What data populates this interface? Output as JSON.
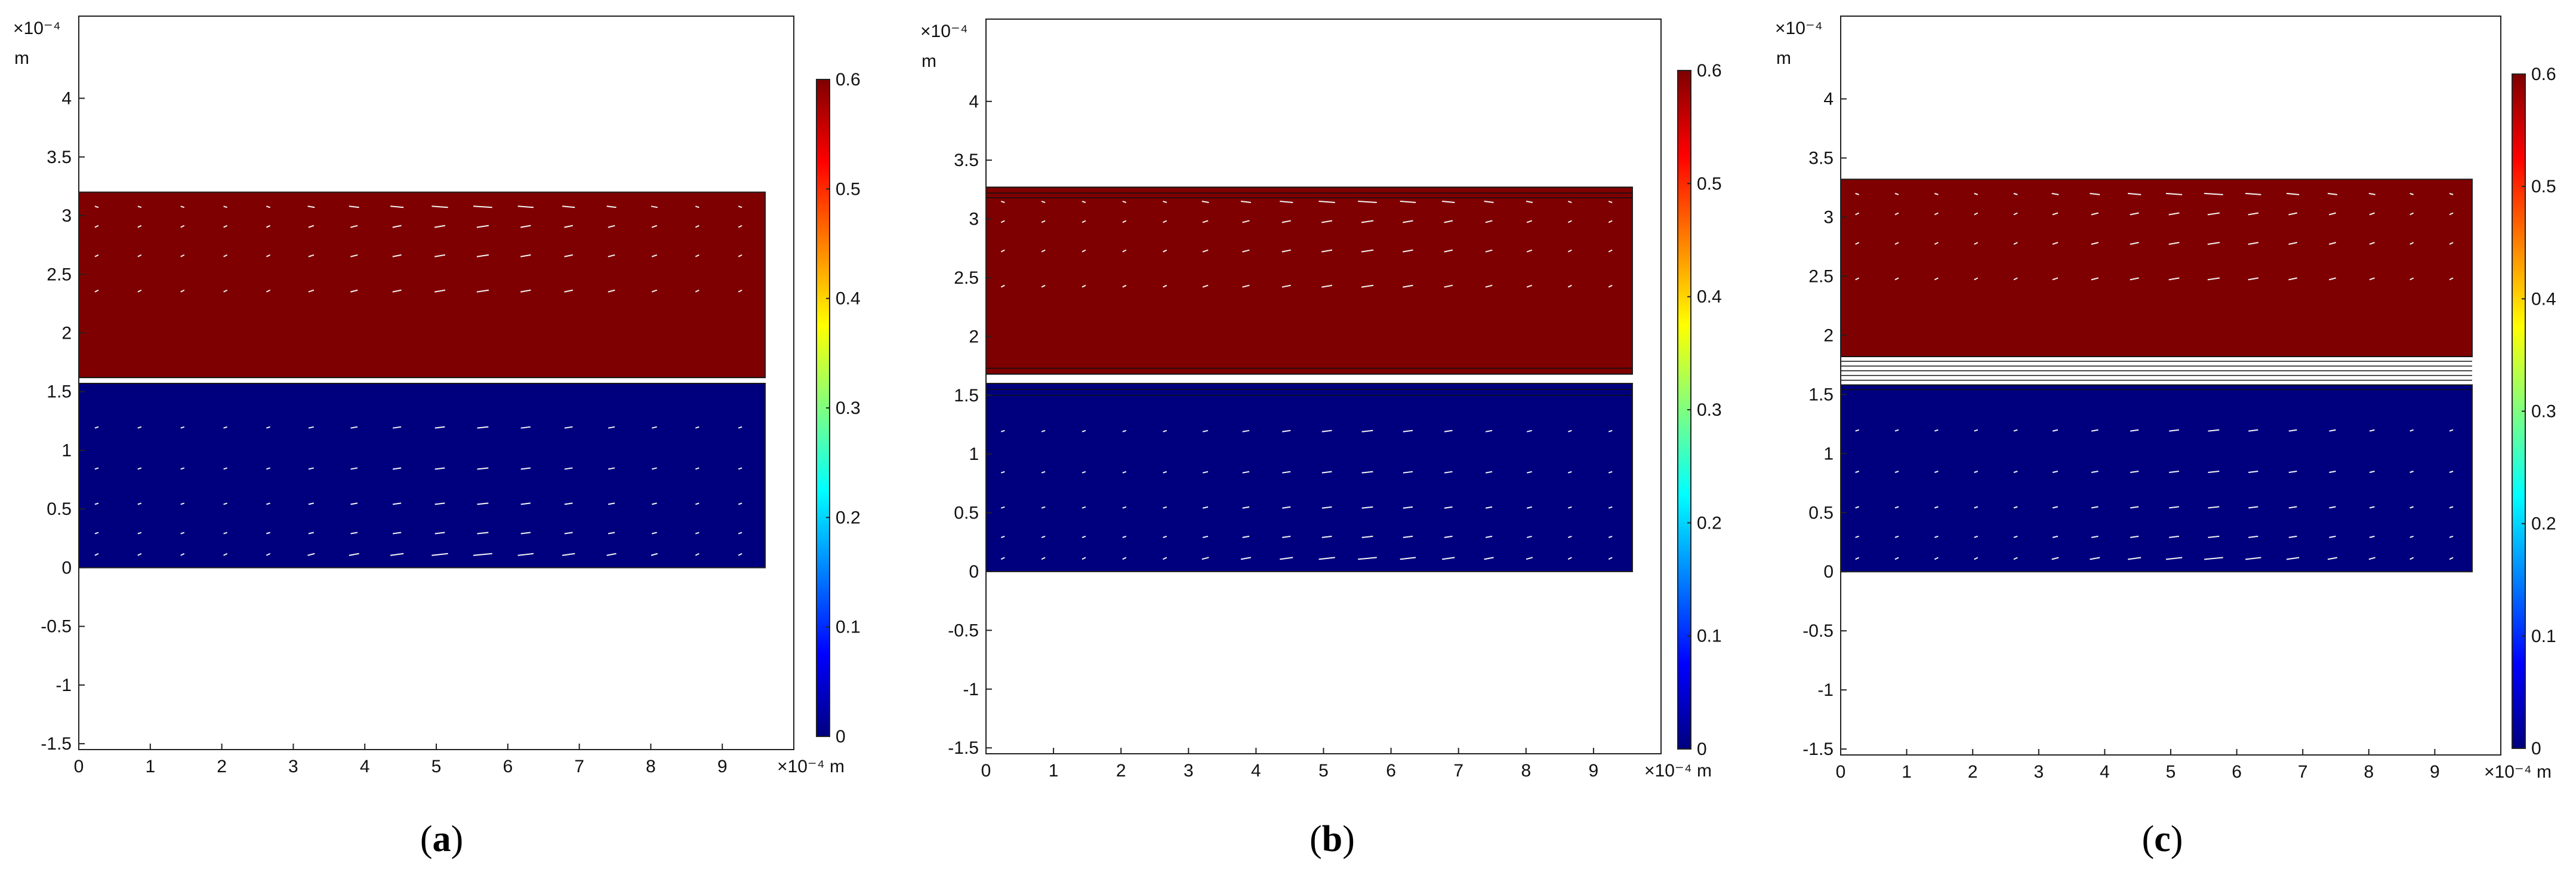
{
  "figure": {
    "panels": [
      {
        "caption_open": "(",
        "caption_letter": "a",
        "caption_close": ")",
        "y_unit_exp": "×10⁻⁴",
        "y_unit": "m",
        "x_unit": "×10⁻⁴ m",
        "x_ticks": [
          "0",
          "1",
          "2",
          "3",
          "4",
          "5",
          "6",
          "7",
          "8",
          "9"
        ],
        "y_ticks": [
          "4",
          "3.5",
          "3",
          "2.5",
          "2",
          "1.5",
          "1",
          "0.5",
          "0",
          "-0.5",
          "-1",
          "-1.5"
        ],
        "cb_ticks": [
          "0.6",
          "0.5",
          "0.4",
          "0.3",
          "0.2",
          "0.1",
          "0"
        ]
      },
      {
        "caption_open": "(",
        "caption_letter": "b",
        "caption_close": ")",
        "y_unit_exp": "×10⁻⁴",
        "y_unit": "m",
        "x_unit": "×10⁻⁴ m",
        "x_ticks": [
          "0",
          "1",
          "2",
          "3",
          "4",
          "5",
          "6",
          "7",
          "8",
          "9"
        ],
        "y_ticks": [
          "4",
          "3.5",
          "3",
          "2.5",
          "2",
          "1.5",
          "1",
          "0.5",
          "0",
          "-0.5",
          "-1",
          "-1.5"
        ],
        "cb_ticks": [
          "0.6",
          "0.5",
          "0.4",
          "0.3",
          "0.2",
          "0.1",
          "0"
        ]
      },
      {
        "caption_open": "(",
        "caption_letter": "c",
        "caption_close": ")",
        "y_unit_exp": "×10⁻⁴",
        "y_unit": "m",
        "x_unit": "×10⁻⁴ m",
        "x_ticks": [
          "0",
          "1",
          "2",
          "3",
          "4",
          "5",
          "6",
          "7",
          "8",
          "9"
        ],
        "y_ticks": [
          "4",
          "3.5",
          "3",
          "2.5",
          "2",
          "1.5",
          "1",
          "0.5",
          "0",
          "-0.5",
          "-1",
          "-1.5"
        ],
        "cb_ticks": [
          "0.6",
          "0.5",
          "0.4",
          "0.3",
          "0.2",
          "0.1",
          "0"
        ]
      }
    ]
  },
  "chart_data": [
    {
      "type": "heatmap",
      "title": "",
      "xlabel": "×10⁻⁴ m",
      "ylabel": "×10⁻⁴ m",
      "xlim": [
        0,
        10
      ],
      "ylim": [
        -1.55,
        4.7
      ],
      "x_ticks": [
        0,
        1,
        2,
        3,
        4,
        5,
        6,
        7,
        8,
        9
      ],
      "y_ticks": [
        4,
        3.5,
        3,
        2.5,
        2,
        1.5,
        1,
        0.5,
        0,
        -0.5,
        -1,
        -1.5
      ],
      "colorbar": {
        "min": 0,
        "max": 0.6,
        "ticks": [
          0,
          0.1,
          0.2,
          0.3,
          0.4,
          0.5,
          0.6
        ],
        "colormap": "jet"
      },
      "regions": [
        {
          "y_from": 1.62,
          "y_to": 3.2,
          "x_from": 0,
          "x_to": 10,
          "value": 0.6
        },
        {
          "y_from": 0,
          "y_to": 1.57,
          "x_from": 0,
          "x_to": 10,
          "value": 0
        }
      ],
      "interface_lines": [
        1.62,
        1.57
      ],
      "velocity_arrows": true
    },
    {
      "type": "heatmap",
      "title": "",
      "xlabel": "×10⁻⁴ m",
      "ylabel": "×10⁻⁴ m",
      "xlim": [
        0,
        10
      ],
      "ylim": [
        -1.55,
        4.7
      ],
      "x_ticks": [
        0,
        1,
        2,
        3,
        4,
        5,
        6,
        7,
        8,
        9
      ],
      "y_ticks": [
        4,
        3.5,
        3,
        2.5,
        2,
        1.5,
        1,
        0.5,
        0,
        -0.5,
        -1,
        -1.5
      ],
      "colorbar": {
        "min": 0,
        "max": 0.6,
        "ticks": [
          0,
          0.1,
          0.2,
          0.3,
          0.4,
          0.5,
          0.6
        ],
        "colormap": "jet"
      },
      "regions": [
        {
          "y_from": 1.68,
          "y_to": 3.27,
          "x_from": 0,
          "x_to": 10,
          "value": 0.6
        },
        {
          "y_from": 0,
          "y_to": 1.6,
          "x_from": 0,
          "x_to": 10,
          "value": 0
        }
      ],
      "interface_lines": [
        3.27,
        3.22,
        3.18,
        1.73,
        1.68,
        1.6,
        1.55,
        1.5
      ],
      "velocity_arrows": true
    },
    {
      "type": "heatmap",
      "title": "",
      "xlabel": "×10⁻⁴ m",
      "ylabel": "×10⁻⁴ m",
      "xlim": [
        0,
        10
      ],
      "ylim": [
        -1.55,
        4.7
      ],
      "x_ticks": [
        0,
        1,
        2,
        3,
        4,
        5,
        6,
        7,
        8,
        9
      ],
      "y_ticks": [
        4,
        3.5,
        3,
        2.5,
        2,
        1.5,
        1,
        0.5,
        0,
        -0.5,
        -1,
        -1.5
      ],
      "colorbar": {
        "min": 0,
        "max": 0.6,
        "ticks": [
          0,
          0.1,
          0.2,
          0.3,
          0.4,
          0.5,
          0.6
        ],
        "colormap": "jet"
      },
      "regions": [
        {
          "y_from": 1.82,
          "y_to": 3.32,
          "x_from": 0,
          "x_to": 10,
          "value": 0.6
        },
        {
          "y_from": 0,
          "y_to": 1.58,
          "x_from": 0,
          "x_to": 10,
          "value": 0
        }
      ],
      "interface_lines": [
        1.82,
        1.78,
        1.74,
        1.7,
        1.66,
        1.62,
        1.58,
        1.54
      ],
      "velocity_arrows": true
    }
  ]
}
